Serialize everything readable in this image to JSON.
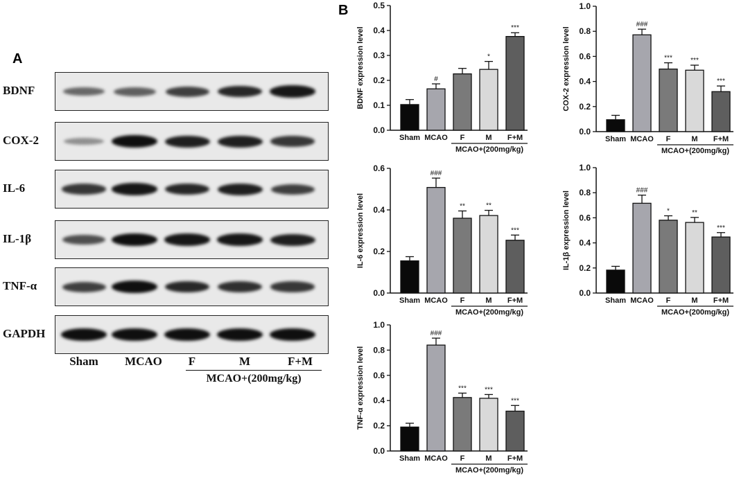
{
  "panel_a": {
    "letter": "A",
    "lanes": [
      "Sham",
      "MCAO",
      "F",
      "M",
      "F+M"
    ],
    "group_label": "MCAO+(200mg/kg)",
    "rows": [
      {
        "label": "BDNF",
        "intensity": [
          0.45,
          0.5,
          0.7,
          0.85,
          0.95
        ]
      },
      {
        "label": "COX-2",
        "intensity": [
          0.2,
          1.0,
          0.9,
          0.9,
          0.75
        ]
      },
      {
        "label": "IL-6",
        "intensity": [
          0.75,
          0.95,
          0.85,
          0.9,
          0.7
        ]
      },
      {
        "label": "IL-1β",
        "intensity": [
          0.6,
          1.0,
          0.95,
          0.95,
          0.9
        ]
      },
      {
        "label": "TNF-α",
        "intensity": [
          0.7,
          1.0,
          0.85,
          0.8,
          0.75
        ]
      },
      {
        "label": "GAPDH",
        "intensity": [
          1.0,
          1.0,
          1.0,
          1.0,
          1.0
        ]
      }
    ]
  },
  "panel_b": {
    "letter": "B"
  },
  "colors": {
    "Sham": "#0a0a0a",
    "MCAO": "#a6a6ad",
    "F": "#7a7a7a",
    "M": "#d9d9d9",
    "F+M": "#5e5e5e"
  },
  "chart_data": [
    {
      "type": "bar",
      "categories": [
        "Sham",
        "MCAO",
        "F",
        "M",
        "F+M"
      ],
      "values": [
        0.103,
        0.166,
        0.226,
        0.244,
        0.376
      ],
      "errors": [
        0.02,
        0.02,
        0.022,
        0.032,
        0.015
      ],
      "annotations": [
        "",
        "#",
        "",
        "*",
        "***"
      ],
      "ylabel": "BDNF expression level",
      "ylim": [
        0,
        0.5
      ],
      "yticks": [
        "0.0",
        "0.1",
        "0.2",
        "0.3",
        "0.4",
        "0.5"
      ],
      "group_label": "MCAO+(200mg/kg)",
      "grid": false
    },
    {
      "type": "bar",
      "categories": [
        "Sham",
        "MCAO",
        "F",
        "M",
        "F+M"
      ],
      "values": [
        0.095,
        0.772,
        0.499,
        0.49,
        0.319
      ],
      "errors": [
        0.035,
        0.045,
        0.05,
        0.04,
        0.045
      ],
      "annotations": [
        "",
        "###",
        "***",
        "***",
        "***"
      ],
      "ylabel": "COX-2 expression level",
      "ylim": [
        0,
        1.0
      ],
      "yticks": [
        "0.0",
        "0.2",
        "0.4",
        "0.6",
        "0.8",
        "1.0"
      ],
      "group_label": "MCAO+(200mg/kg)",
      "grid": false
    },
    {
      "type": "bar",
      "categories": [
        "Sham",
        "MCAO",
        "F",
        "M",
        "F+M"
      ],
      "values": [
        0.155,
        0.508,
        0.36,
        0.373,
        0.254
      ],
      "errors": [
        0.02,
        0.045,
        0.035,
        0.025,
        0.025
      ],
      "annotations": [
        "",
        "###",
        "**",
        "**",
        "***"
      ],
      "ylabel": "IL-6 expression level",
      "ylim": [
        0,
        0.6
      ],
      "yticks": [
        "0.0",
        "0.2",
        "0.4",
        "0.6"
      ],
      "group_label": "MCAO+(200mg/kg)",
      "grid": false
    },
    {
      "type": "bar",
      "categories": [
        "Sham",
        "MCAO",
        "F",
        "M",
        "F+M"
      ],
      "values": [
        0.183,
        0.716,
        0.581,
        0.563,
        0.447
      ],
      "errors": [
        0.03,
        0.065,
        0.035,
        0.04,
        0.035
      ],
      "annotations": [
        "",
        "###",
        "*",
        "**",
        "***"
      ],
      "ylabel": "IL-1β expression level",
      "ylim": [
        0,
        1.0
      ],
      "yticks": [
        "0.0",
        "0.2",
        "0.4",
        "0.6",
        "0.8",
        "1.0"
      ],
      "group_label": "MCAO+(200mg/kg)",
      "grid": false
    },
    {
      "type": "bar",
      "categories": [
        "Sham",
        "MCAO",
        "F",
        "M",
        "F+M"
      ],
      "values": [
        0.19,
        0.84,
        0.424,
        0.418,
        0.316
      ],
      "errors": [
        0.03,
        0.055,
        0.035,
        0.03,
        0.045
      ],
      "annotations": [
        "",
        "###",
        "***",
        "***",
        "***"
      ],
      "ylabel": "TNF-α expression level",
      "ylim": [
        0,
        1.0
      ],
      "yticks": [
        "0.0",
        "0.2",
        "0.4",
        "0.6",
        "0.8",
        "1.0"
      ],
      "group_label": "MCAO+(200mg/kg)",
      "grid": false
    }
  ]
}
